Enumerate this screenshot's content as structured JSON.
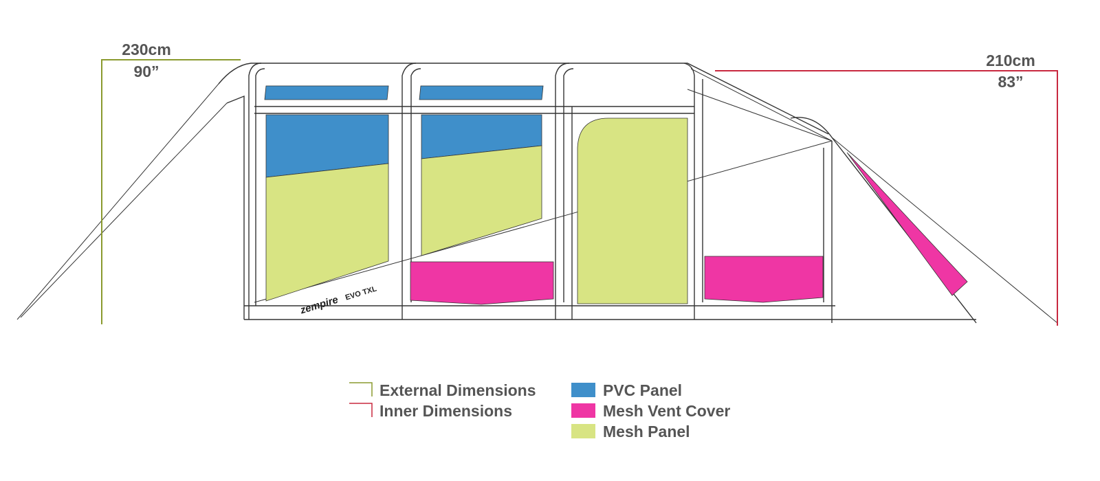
{
  "dimensions": {
    "external": {
      "metric": "230cm",
      "imperial": "90”"
    },
    "inner": {
      "metric": "210cm",
      "imperial": "83”"
    }
  },
  "brand": {
    "name": "zempire",
    "model": "EVO TXL"
  },
  "legend": [
    {
      "label": "External Dimensions",
      "color": "#8a9a2e"
    },
    {
      "label": "Inner Dimensions",
      "color": "#c8283f"
    },
    {
      "label": "PVC Panel",
      "color": "#3f8fca"
    },
    {
      "label": "Mesh Vent Cover",
      "color": "#ef36a4"
    },
    {
      "label": "Mesh Panel",
      "color": "#d8e483"
    }
  ]
}
